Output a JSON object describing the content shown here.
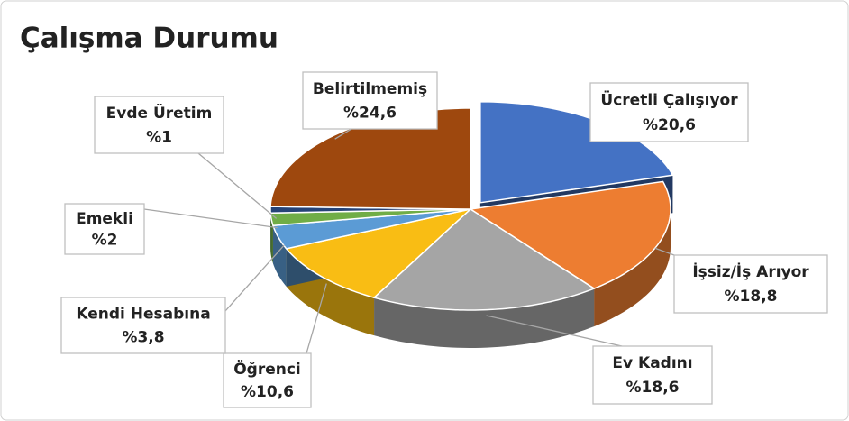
{
  "chart_data": {
    "type": "pie3d",
    "title": "Çalışma Durumu",
    "categories": [
      "Ücretli Çalışıyor",
      "İşsiz/İş Arıyor",
      "Ev Kadını",
      "Öğrenci",
      "Kendi Hesabına",
      "Emekli",
      "Evde Üretim",
      "Belirtilmemiş"
    ],
    "values": [
      20.6,
      18.8,
      18.6,
      10.6,
      3.8,
      2,
      1,
      24.6
    ],
    "value_labels": [
      "%20,6",
      "%18,8",
      "%18,6",
      "%10,6",
      "%3,8",
      "%2",
      "%1",
      "%24,6"
    ],
    "colors": [
      "#4472c4",
      "#ed7d31",
      "#a5a5a5",
      "#f9bd14",
      "#5b9bd5",
      "#70ad47",
      "#264478",
      "#9e480e"
    ]
  }
}
